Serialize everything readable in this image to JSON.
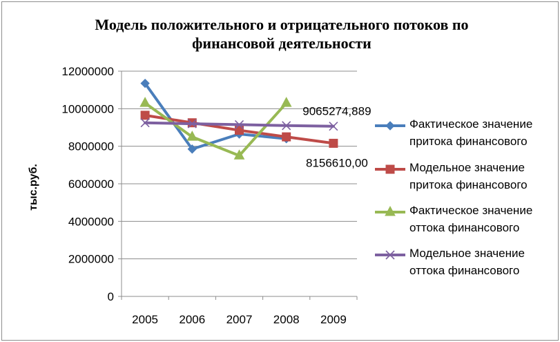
{
  "chart_data": {
    "type": "line",
    "title_lines": [
      "Модель положительного и отрицательного потоков по",
      "финансовой деятельности"
    ],
    "ylabel": "тыс.руб.",
    "xlabel": "",
    "categories": [
      "2005",
      "2006",
      "2007",
      "2008",
      "2009"
    ],
    "ylim": [
      0,
      12000000
    ],
    "yticks": [
      0,
      2000000,
      4000000,
      6000000,
      8000000,
      10000000,
      12000000
    ],
    "ytick_labels": [
      "0",
      "2000000",
      "4000000",
      "6000000",
      "8000000",
      "10000000",
      "12000000"
    ],
    "grid": "horizontal",
    "legend_position": "right",
    "series": [
      {
        "name_lines": [
          "Фактическое значение",
          "притока финансового"
        ],
        "color": "#4a7ebb",
        "marker": "diamond",
        "values": [
          11350000,
          7850000,
          8650000,
          8400000,
          null
        ]
      },
      {
        "name_lines": [
          "Модельное значение",
          "притока финансового"
        ],
        "color": "#be4b48",
        "marker": "square",
        "values": [
          9650000,
          9250000,
          8850000,
          8500000,
          8156610
        ]
      },
      {
        "name_lines": [
          "Фактическое значение",
          "оттока финансового"
        ],
        "color": "#98b954",
        "marker": "triangle",
        "values": [
          10300000,
          8500000,
          7500000,
          10300000,
          null
        ]
      },
      {
        "name_lines": [
          "Модельное значение",
          "оттока финансового"
        ],
        "color": "#7d60a0",
        "marker": "x",
        "values": [
          9250000,
          9200000,
          9150000,
          9100000,
          9065274.889
        ]
      }
    ],
    "data_labels": [
      {
        "series": 3,
        "category": "2009",
        "text": "9065274,889",
        "position": "above"
      },
      {
        "series": 1,
        "category": "2009",
        "text": "8156610,00",
        "position": "below"
      }
    ]
  }
}
